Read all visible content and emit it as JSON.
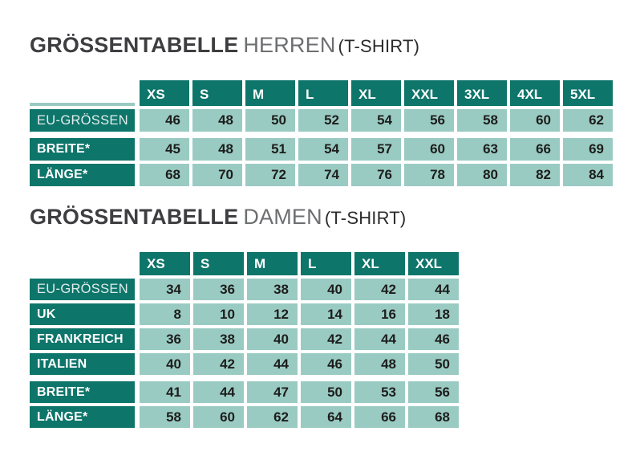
{
  "colors": {
    "teal_dark": "#0e756a",
    "cell_light": "#9acbc3",
    "title_strong": "#3e3d40",
    "title_light": "#6d6e70",
    "title_paren": "#2b2b2b",
    "number_text": "#1d1d1b",
    "background": "#ffffff"
  },
  "tables": [
    {
      "id": "herren",
      "title": {
        "strong": "GRÖSSENTABELLE",
        "light": "HERREN",
        "paren": "(T-SHIRT)"
      },
      "columns": [
        "XS",
        "S",
        "M",
        "L",
        "XL",
        "XXL",
        "3XL",
        "4XL",
        "5XL"
      ],
      "rows": [
        {
          "label": "EU-GRÖSSEN",
          "emphasis": false,
          "group_start": false,
          "values": [
            46,
            48,
            50,
            52,
            54,
            56,
            58,
            60,
            62
          ]
        },
        {
          "label": "BREITE*",
          "emphasis": true,
          "group_start": true,
          "values": [
            45,
            48,
            51,
            54,
            57,
            60,
            63,
            66,
            69
          ]
        },
        {
          "label": "LÄNGE*",
          "emphasis": true,
          "group_start": false,
          "values": [
            68,
            70,
            72,
            74,
            76,
            78,
            80,
            82,
            84
          ]
        }
      ]
    },
    {
      "id": "damen",
      "title": {
        "strong": "GRÖSSENTABELLE",
        "light": "DAMEN",
        "paren": "(T-SHIRT)"
      },
      "columns": [
        "XS",
        "S",
        "M",
        "L",
        "XL",
        "XXL"
      ],
      "rows": [
        {
          "label": "EU-GRÖSSEN",
          "emphasis": false,
          "group_start": false,
          "values": [
            34,
            36,
            38,
            40,
            42,
            44
          ]
        },
        {
          "label": "UK",
          "emphasis": true,
          "group_start": false,
          "values": [
            8,
            10,
            12,
            14,
            16,
            18
          ]
        },
        {
          "label": "FRANKREICH",
          "emphasis": true,
          "group_start": false,
          "values": [
            36,
            38,
            40,
            42,
            44,
            46
          ]
        },
        {
          "label": "ITALIEN",
          "emphasis": true,
          "group_start": false,
          "values": [
            40,
            42,
            44,
            46,
            48,
            50
          ]
        },
        {
          "label": "BREITE*",
          "emphasis": true,
          "group_start": true,
          "values": [
            41,
            44,
            47,
            50,
            53,
            56
          ]
        },
        {
          "label": "LÄNGE*",
          "emphasis": true,
          "group_start": false,
          "values": [
            58,
            60,
            62,
            64,
            66,
            68
          ]
        }
      ]
    }
  ]
}
